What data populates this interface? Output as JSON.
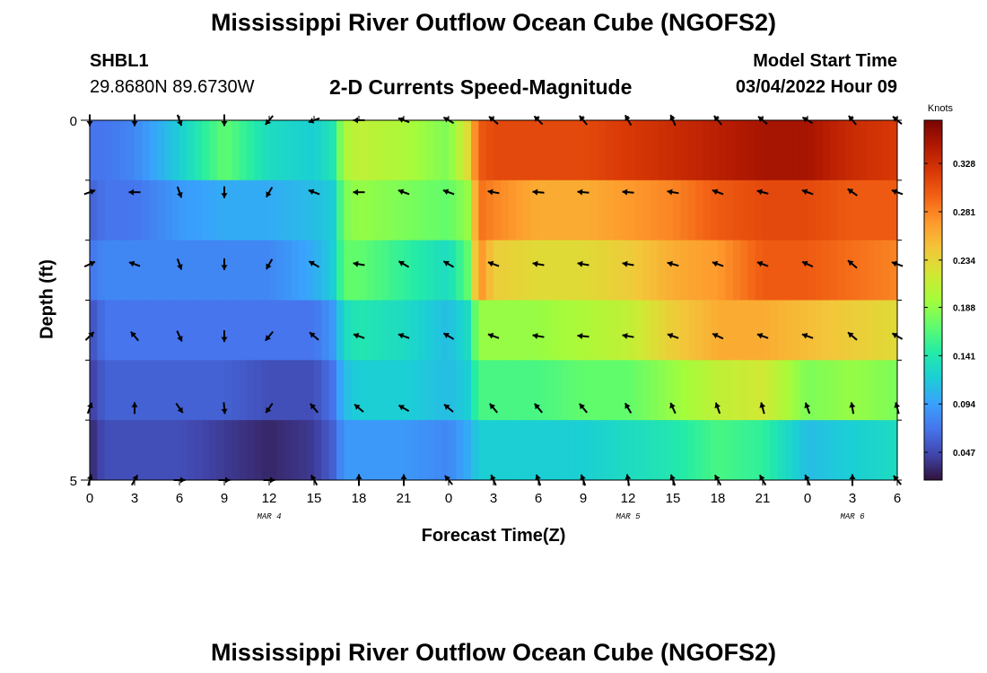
{
  "title": "Mississippi River Outflow Ocean Cube (NGOFS2)",
  "station": {
    "name": "SHBL1",
    "coords": "29.8680N  89.6730W"
  },
  "subtitle": "2-D Currents Speed-Magnitude",
  "model_start": {
    "label": "Model Start Time",
    "value": "03/04/2022 Hour 09"
  },
  "colors": {
    "map": [
      "#30123b",
      "#4145ab",
      "#4675ed",
      "#39a2fc",
      "#1bcfd4",
      "#24eca6",
      "#61fc6c",
      "#a4fc3b",
      "#d1e834",
      "#f3c63a",
      "#fe9b2d",
      "#f36315",
      "#d93806",
      "#b11901",
      "#7a0402"
    ]
  },
  "chart_data": {
    "type": "heatmap",
    "title": "2-D Currents Speed-Magnitude",
    "xlabel": "Forecast Time(Z)",
    "ylabel": "Depth (ft)",
    "colorbar_label": "Knots",
    "colorbar_ticks": [
      "0.047",
      "0.094",
      "0.141",
      "0.188",
      "0.234",
      "0.281",
      "0.328"
    ],
    "colorbar_range": [
      0.02,
      0.37
    ],
    "x_hours": [
      0,
      3,
      6,
      9,
      12,
      15,
      18,
      21,
      24,
      27,
      30,
      33,
      36,
      39,
      42,
      45,
      48,
      51,
      54
    ],
    "x_tick_labels": [
      "0",
      "3",
      "6",
      "9",
      "12",
      "15",
      "18",
      "21",
      "0",
      "3",
      "6",
      "9",
      "12",
      "15",
      "18",
      "21",
      "0",
      "3",
      "6"
    ],
    "x_range_hours": [
      0,
      54
    ],
    "day_labels": [
      {
        "text": "MAR 4",
        "hour": 12
      },
      {
        "text": "MAR 5",
        "hour": 36
      },
      {
        "text": "MAR 6",
        "hour": 51
      }
    ],
    "y_tick_labels": [
      "0",
      "5"
    ],
    "y_range": [
      0,
      5
    ],
    "speed_grid": {
      "hours": [
        0,
        1,
        3,
        6,
        9,
        12,
        15,
        16.3,
        17,
        18,
        21,
        24,
        25.3,
        26,
        27,
        30,
        33,
        36,
        39,
        42,
        45,
        48,
        51,
        54
      ],
      "layers": [
        [
          0.07,
          0.07,
          0.08,
          0.12,
          0.17,
          0.13,
          0.12,
          0.14,
          0.2,
          0.21,
          0.2,
          0.18,
          0.23,
          0.3,
          0.31,
          0.31,
          0.31,
          0.32,
          0.33,
          0.34,
          0.35,
          0.35,
          0.33,
          0.32
        ],
        [
          0.06,
          0.07,
          0.07,
          0.09,
          0.1,
          0.1,
          0.11,
          0.12,
          0.18,
          0.19,
          0.18,
          0.17,
          0.19,
          0.29,
          0.28,
          0.26,
          0.26,
          0.27,
          0.28,
          0.3,
          0.31,
          0.31,
          0.3,
          0.3
        ],
        [
          0.07,
          0.08,
          0.08,
          0.08,
          0.08,
          0.08,
          0.1,
          0.12,
          0.17,
          0.17,
          0.15,
          0.13,
          0.17,
          0.28,
          0.24,
          0.23,
          0.23,
          0.24,
          0.26,
          0.27,
          0.3,
          0.3,
          0.29,
          0.28
        ],
        [
          0.05,
          0.07,
          0.07,
          0.07,
          0.07,
          0.07,
          0.07,
          0.09,
          0.13,
          0.14,
          0.13,
          0.11,
          0.13,
          0.19,
          0.19,
          0.19,
          0.2,
          0.21,
          0.24,
          0.26,
          0.26,
          0.25,
          0.24,
          0.23
        ],
        [
          0.04,
          0.06,
          0.06,
          0.06,
          0.06,
          0.05,
          0.05,
          0.07,
          0.11,
          0.12,
          0.12,
          0.11,
          0.12,
          0.16,
          0.16,
          0.16,
          0.17,
          0.17,
          0.19,
          0.21,
          0.22,
          0.18,
          0.19,
          0.18
        ],
        [
          0.03,
          0.05,
          0.05,
          0.05,
          0.04,
          0.03,
          0.04,
          0.06,
          0.09,
          0.09,
          0.09,
          0.08,
          0.1,
          0.12,
          0.12,
          0.12,
          0.12,
          0.13,
          0.14,
          0.16,
          0.15,
          0.11,
          0.12,
          0.13
        ]
      ]
    },
    "vector_hours": [
      0,
      3,
      6,
      9,
      12,
      15,
      18,
      21,
      24,
      27,
      30,
      33,
      36,
      39,
      42,
      45,
      48,
      51,
      54
    ],
    "vector_depths": [
      0,
      1,
      2,
      3,
      4,
      5
    ],
    "vector_directions_deg": [
      [
        180,
        180,
        160,
        180,
        220,
        250,
        270,
        290,
        300,
        310,
        315,
        320,
        330,
        335,
        320,
        310,
        300,
        320,
        310
      ],
      [
        70,
        270,
        160,
        180,
        210,
        290,
        270,
        290,
        290,
        280,
        275,
        275,
        275,
        280,
        290,
        285,
        290,
        305,
        290
      ],
      [
        65,
        290,
        160,
        180,
        210,
        300,
        280,
        300,
        300,
        290,
        280,
        280,
        280,
        285,
        290,
        290,
        295,
        310,
        290
      ],
      [
        45,
        320,
        155,
        180,
        220,
        310,
        290,
        290,
        300,
        290,
        280,
        275,
        280,
        290,
        295,
        290,
        290,
        310,
        300
      ],
      [
        20,
        0,
        145,
        175,
        215,
        320,
        310,
        300,
        310,
        320,
        320,
        320,
        330,
        335,
        340,
        345,
        340,
        350,
        345
      ],
      [
        15,
        30,
        90,
        90,
        90,
        330,
        0,
        0,
        320,
        335,
        340,
        340,
        350,
        340,
        330,
        330,
        335,
        0,
        320
      ]
    ]
  }
}
